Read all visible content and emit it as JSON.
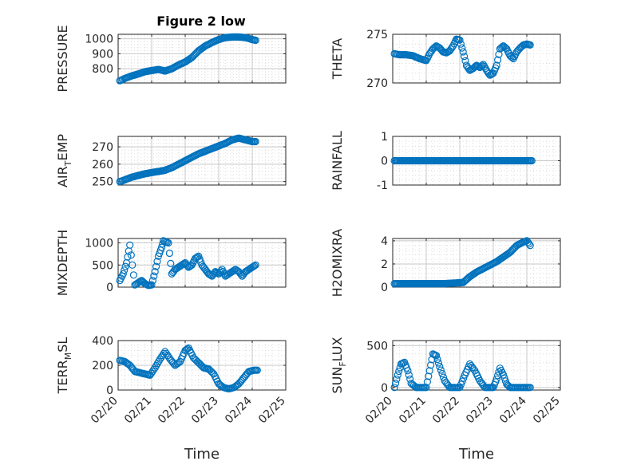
{
  "figure": {
    "title": "Figure 2 low"
  },
  "chart_data": [
    {
      "type": "scatter",
      "ylabel": "PRESSURE",
      "ylabel_sub": "",
      "ylabel_suffix": "",
      "xlim": [
        0,
        5
      ],
      "ylim": [
        705,
        1030
      ],
      "yticks": [
        800,
        900,
        1000
      ],
      "xticks": [
        "02/20",
        "02/21",
        "02/22",
        "02/23",
        "02/24",
        "02/25"
      ],
      "show_xtick_labels": false,
      "xlabel": "",
      "x": [
        0.05,
        0.2,
        0.4,
        0.6,
        0.8,
        1.0,
        1.2,
        1.4,
        1.6,
        1.8,
        2.0,
        2.2,
        2.4,
        2.6,
        2.8,
        3.0,
        3.2,
        3.4,
        3.6,
        3.8,
        4.0,
        4.1
      ],
      "y": [
        720,
        735,
        752,
        765,
        780,
        788,
        795,
        785,
        800,
        825,
        845,
        875,
        920,
        952,
        975,
        995,
        1008,
        1012,
        1012,
        1008,
        995,
        990
      ]
    },
    {
      "type": "scatter",
      "ylabel": "THETA",
      "ylabel_sub": "",
      "ylabel_suffix": "",
      "xlim": [
        0,
        5
      ],
      "ylim": [
        270,
        275
      ],
      "yticks": [
        270,
        275
      ],
      "xticks": [
        "02/20",
        "02/21",
        "02/22",
        "02/23",
        "02/24",
        "02/25"
      ],
      "show_xtick_labels": false,
      "xlabel": "",
      "x": [
        0.05,
        0.2,
        0.4,
        0.6,
        0.8,
        1.0,
        1.1,
        1.2,
        1.3,
        1.4,
        1.5,
        1.6,
        1.7,
        1.8,
        1.9,
        2.0,
        2.1,
        2.2,
        2.3,
        2.4,
        2.5,
        2.6,
        2.7,
        2.8,
        2.9,
        3.0,
        3.1,
        3.2,
        3.3,
        3.4,
        3.5,
        3.6,
        3.7,
        3.8,
        3.9,
        4.0,
        4.1
      ],
      "y": [
        273,
        272.9,
        272.9,
        272.8,
        272.5,
        272.3,
        273,
        273.5,
        273.8,
        273.6,
        273.2,
        273.1,
        273.3,
        273.8,
        274.5,
        274.4,
        273.2,
        271.8,
        271.3,
        271.5,
        271.8,
        271.6,
        271.9,
        271.3,
        270.8,
        271.0,
        271.8,
        273.5,
        273.8,
        273.5,
        272.8,
        272.5,
        273.2,
        273.6,
        273.9,
        274.0,
        273.9
      ]
    },
    {
      "type": "scatter",
      "ylabel": "AIR",
      "ylabel_sub": "T",
      "ylabel_suffix": "EMP",
      "xlim": [
        0,
        5
      ],
      "ylim": [
        248,
        276
      ],
      "yticks": [
        250,
        260,
        270
      ],
      "xticks": [
        "02/20",
        "02/21",
        "02/22",
        "02/23",
        "02/24",
        "02/25"
      ],
      "show_xtick_labels": false,
      "xlabel": "",
      "x": [
        0.05,
        0.2,
        0.4,
        0.6,
        0.8,
        1.0,
        1.2,
        1.4,
        1.6,
        1.8,
        2.0,
        2.2,
        2.4,
        2.6,
        2.8,
        3.0,
        3.2,
        3.4,
        3.6,
        3.8,
        4.0,
        4.1
      ],
      "y": [
        250,
        251,
        252.5,
        253.5,
        254.5,
        255.2,
        255.8,
        256.5,
        258,
        260,
        262,
        264,
        266,
        267.5,
        269,
        270.5,
        272,
        274,
        275,
        274,
        273,
        273
      ]
    },
    {
      "type": "scatter",
      "ylabel": "RAINFALL",
      "ylabel_sub": "",
      "ylabel_suffix": "",
      "xlim": [
        0,
        5
      ],
      "ylim": [
        -1,
        1
      ],
      "yticks": [
        -1,
        0,
        1
      ],
      "xticks": [
        "02/20",
        "02/21",
        "02/22",
        "02/23",
        "02/24",
        "02/25"
      ],
      "show_xtick_labels": false,
      "xlabel": "",
      "x": [
        0.05,
        0.25,
        0.45,
        0.65,
        0.85,
        1.05,
        1.25,
        1.45,
        1.65,
        1.85,
        2.05,
        2.25,
        2.45,
        2.65,
        2.85,
        3.05,
        3.25,
        3.45,
        3.65,
        3.85,
        4.05,
        4.15
      ],
      "y": [
        0,
        0,
        0,
        0,
        0,
        0,
        0,
        0,
        0,
        0,
        0,
        0,
        0,
        0,
        0,
        0,
        0,
        0,
        0,
        0,
        0,
        0
      ]
    },
    {
      "type": "scatter",
      "ylabel": "MIXDEPTH",
      "ylabel_sub": "",
      "ylabel_suffix": "",
      "xlim": [
        0,
        5
      ],
      "ylim": [
        0,
        1100
      ],
      "yticks": [
        0,
        500,
        1000
      ],
      "xticks": [
        "02/20",
        "02/21",
        "02/22",
        "02/23",
        "02/24",
        "02/25"
      ],
      "show_xtick_labels": false,
      "xlabel": "",
      "x": [
        0.05,
        0.15,
        0.25,
        0.35,
        0.5,
        0.6,
        0.7,
        0.8,
        0.9,
        1.0,
        1.1,
        1.2,
        1.3,
        1.35,
        1.5,
        1.6,
        1.7,
        1.8,
        1.9,
        2.0,
        2.1,
        2.2,
        2.3,
        2.4,
        2.5,
        2.6,
        2.7,
        2.8,
        2.9,
        3.0,
        3.1,
        3.2,
        3.3,
        3.4,
        3.5,
        3.6,
        3.7,
        3.8,
        3.9,
        4.0,
        4.1
      ],
      "y": [
        150,
        300,
        550,
        950,
        50,
        100,
        150,
        80,
        40,
        50,
        350,
        700,
        900,
        1050,
        1000,
        300,
        400,
        450,
        500,
        550,
        450,
        500,
        650,
        700,
        500,
        400,
        300,
        250,
        350,
        300,
        400,
        250,
        300,
        350,
        400,
        350,
        250,
        350,
        400,
        450,
        500
      ]
    },
    {
      "type": "scatter",
      "ylabel": "H2OMIXRA",
      "ylabel_sub": "",
      "ylabel_suffix": "",
      "xlim": [
        0,
        5
      ],
      "ylim": [
        0,
        4.2
      ],
      "yticks": [
        0,
        2,
        4
      ],
      "xticks": [
        "02/20",
        "02/21",
        "02/22",
        "02/23",
        "02/24",
        "02/25"
      ],
      "show_xtick_labels": false,
      "xlabel": "",
      "x": [
        0.05,
        0.3,
        0.6,
        0.9,
        1.2,
        1.5,
        1.8,
        2.1,
        2.3,
        2.5,
        2.7,
        2.9,
        3.1,
        3.3,
        3.5,
        3.7,
        3.9,
        4.0,
        4.1
      ],
      "y": [
        0.3,
        0.3,
        0.3,
        0.3,
        0.3,
        0.3,
        0.35,
        0.4,
        0.9,
        1.3,
        1.6,
        1.9,
        2.2,
        2.6,
        3.0,
        3.6,
        3.9,
        4.0,
        3.6
      ]
    },
    {
      "type": "scatter",
      "ylabel": "TERR",
      "ylabel_sub": "M",
      "ylabel_suffix": "SL",
      "xlim": [
        0,
        5
      ],
      "ylim": [
        0,
        400
      ],
      "yticks": [
        0,
        200,
        400
      ],
      "xticks": [
        "02/20",
        "02/21",
        "02/22",
        "02/23",
        "02/24",
        "02/25"
      ],
      "show_xtick_labels": true,
      "xlabel": "Time",
      "x": [
        0.05,
        0.2,
        0.35,
        0.5,
        0.65,
        0.8,
        0.95,
        1.1,
        1.25,
        1.4,
        1.55,
        1.7,
        1.85,
        2.0,
        2.1,
        2.25,
        2.4,
        2.55,
        2.7,
        2.85,
        3.0,
        3.15,
        3.3,
        3.45,
        3.6,
        3.75,
        3.9,
        4.05,
        4.15
      ],
      "y": [
        240,
        230,
        200,
        150,
        140,
        130,
        120,
        180,
        250,
        310,
        250,
        200,
        230,
        320,
        340,
        260,
        220,
        180,
        170,
        130,
        50,
        20,
        10,
        20,
        50,
        100,
        150,
        160,
        160
      ]
    },
    {
      "type": "scatter",
      "ylabel": "SUN",
      "ylabel_sub": "F",
      "ylabel_suffix": "LUX",
      "xlim": [
        0,
        5
      ],
      "ylim": [
        -30,
        560
      ],
      "yticks": [
        0,
        500
      ],
      "xticks": [
        "02/20",
        "02/21",
        "02/22",
        "02/23",
        "02/24",
        "02/25"
      ],
      "show_xtick_labels": true,
      "xlabel": "Time",
      "x": [
        0.05,
        0.15,
        0.25,
        0.35,
        0.45,
        0.55,
        0.7,
        0.85,
        1.0,
        1.1,
        1.2,
        1.3,
        1.4,
        1.55,
        1.7,
        1.85,
        2.0,
        2.15,
        2.3,
        2.45,
        2.6,
        2.75,
        2.9,
        3.0,
        3.1,
        3.2,
        3.3,
        3.4,
        3.5,
        3.65,
        3.8,
        3.95,
        4.1
      ],
      "y": [
        0,
        150,
        280,
        300,
        200,
        50,
        0,
        0,
        0,
        200,
        400,
        380,
        250,
        80,
        0,
        0,
        0,
        150,
        280,
        200,
        80,
        0,
        0,
        0,
        100,
        230,
        150,
        40,
        0,
        0,
        0,
        0,
        0
      ]
    }
  ]
}
